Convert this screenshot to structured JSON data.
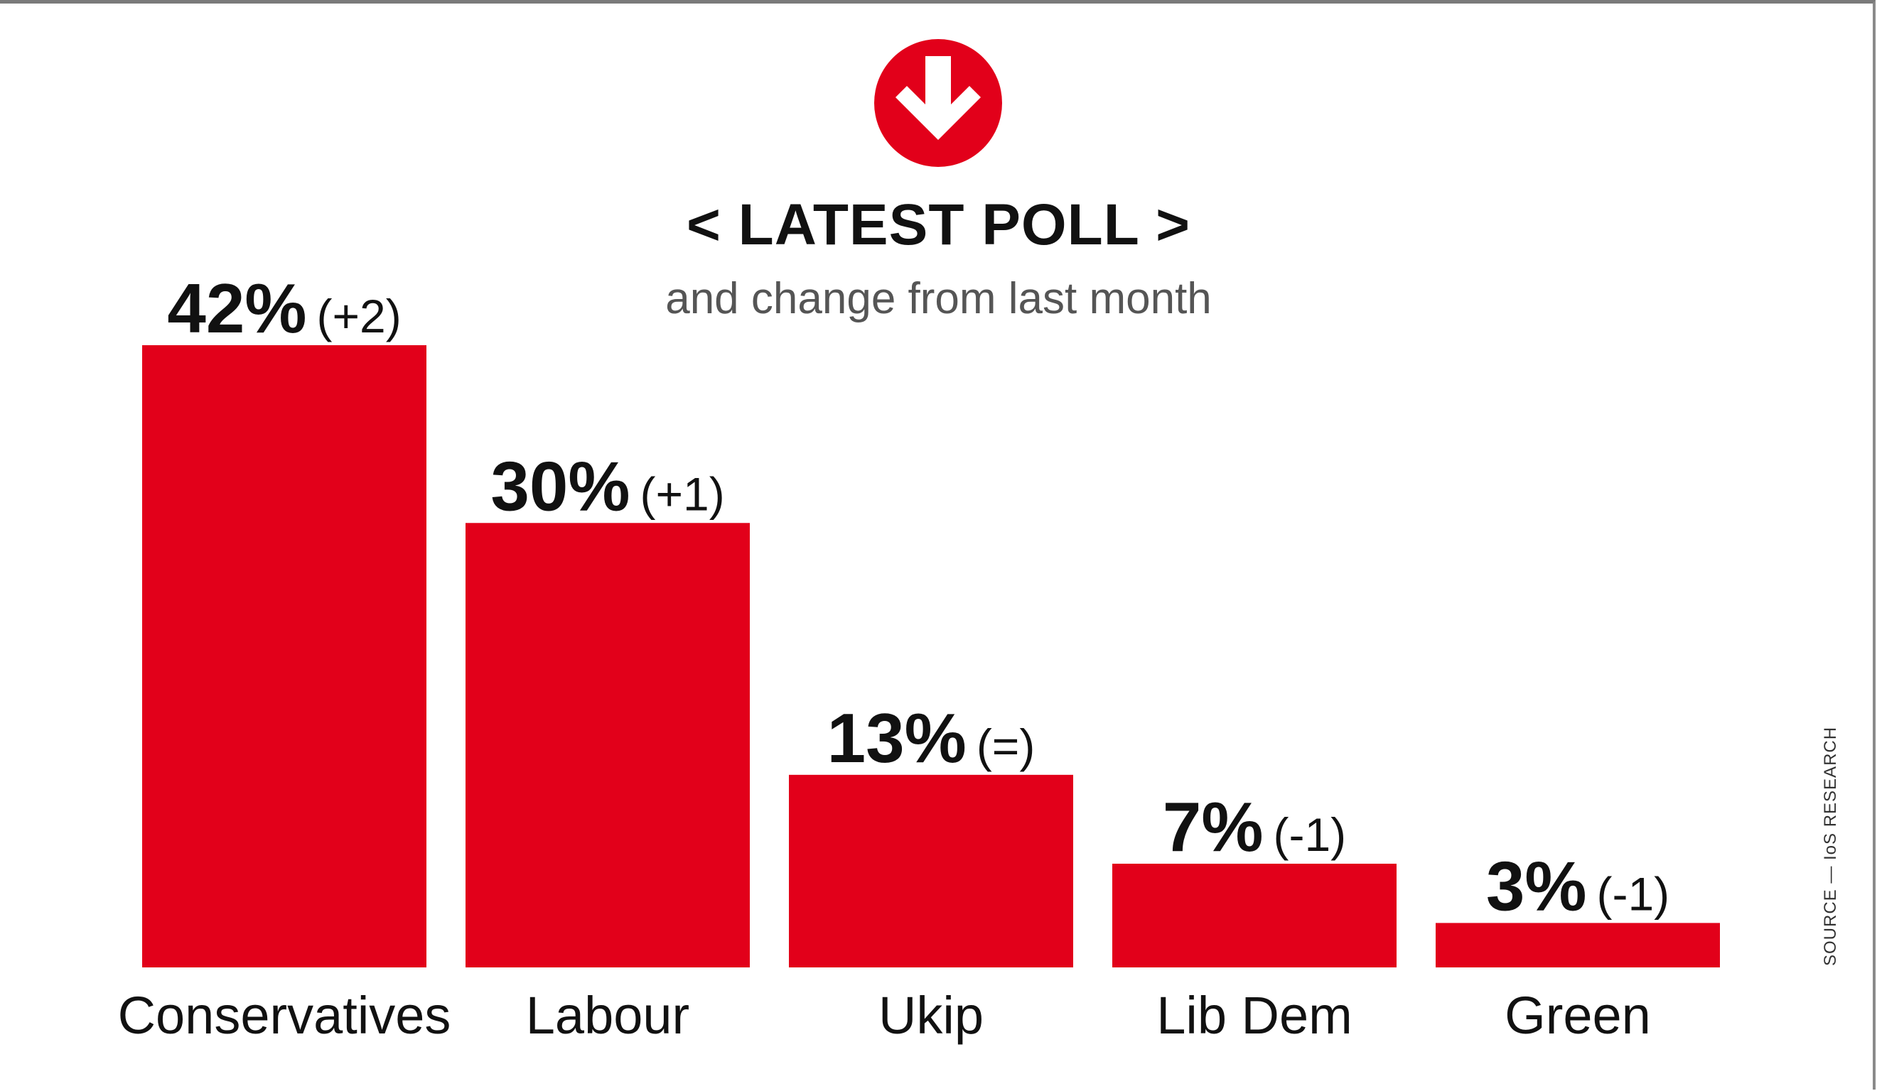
{
  "header": {
    "title": "< LATEST POLL >",
    "subtitle": "and change from last month"
  },
  "source": "SOURCE — IoS RESEARCH",
  "logo": {
    "icon": "down-arrow-circle-icon",
    "color": "#e2001a"
  },
  "colors": {
    "bar": "#e2001a",
    "text": "#111111"
  },
  "chart_data": {
    "type": "bar",
    "title": "< LATEST POLL >",
    "subtitle": "and change from last month",
    "categories": [
      "Conservatives",
      "Labour",
      "Ukip",
      "Lib Dem",
      "Green"
    ],
    "values": [
      42,
      30,
      13,
      7,
      3
    ],
    "unit": "%",
    "value_labels": [
      "42%",
      "30%",
      "13%",
      "7%",
      "3%"
    ],
    "change_labels": [
      "(+2)",
      "(+1)",
      "(=)",
      "(-1)",
      "(-1)"
    ],
    "ylim": [
      0,
      42
    ],
    "grid": false,
    "legend": "none"
  }
}
